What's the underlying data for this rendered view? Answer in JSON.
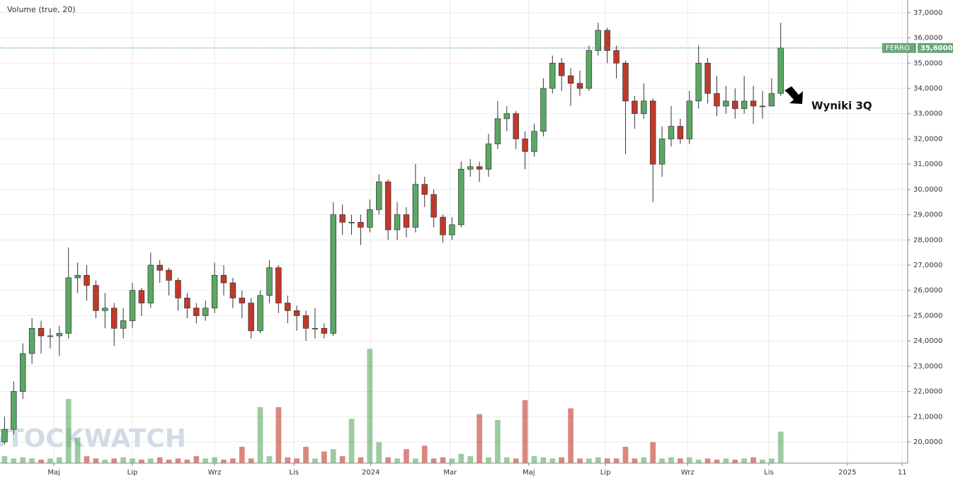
{
  "chart_data": {
    "type": "candlestick",
    "title": "Volume (true, 20)",
    "watermark": "STOCKWATCH",
    "symbol": "FERRO",
    "last_price": 35.6,
    "last_price_label": "35,6000",
    "annotation": "Wyniki 3Q",
    "up_color": "#5aa864",
    "down_color": "#c0392b",
    "xlim": [
      -0.5,
      98.9
    ],
    "xticks": [
      {
        "value": 5.4,
        "label": "Maj"
      },
      {
        "value": 14.0,
        "label": "Lip"
      },
      {
        "value": 23.0,
        "label": "Wrz"
      },
      {
        "value": 31.7,
        "label": "Lis"
      },
      {
        "value": 40.1,
        "label": "2024"
      },
      {
        "value": 48.8,
        "label": "Mar"
      },
      {
        "value": 57.4,
        "label": "Maj"
      },
      {
        "value": 65.8,
        "label": "Lip"
      },
      {
        "value": 74.8,
        "label": "Wrz"
      },
      {
        "value": 83.7,
        "label": "Lis"
      },
      {
        "value": 92.3,
        "label": "2025"
      },
      {
        "value": 98.3,
        "label": "11"
      }
    ],
    "ylim": [
      19.16,
      37.5
    ],
    "yticks": [
      {
        "value": 20,
        "label": "20,0000"
      },
      {
        "value": 21,
        "label": "21,0000"
      },
      {
        "value": 22,
        "label": "22,0000"
      },
      {
        "value": 23,
        "label": "23,0000"
      },
      {
        "value": 24,
        "label": "24,0000"
      },
      {
        "value": 25,
        "label": "25,0000"
      },
      {
        "value": 26,
        "label": "26,0000"
      },
      {
        "value": 27,
        "label": "27,0000"
      },
      {
        "value": 28,
        "label": "28,0000"
      },
      {
        "value": 29,
        "label": "29,0000"
      },
      {
        "value": 30,
        "label": "30,0000"
      },
      {
        "value": 31,
        "label": "31,0000"
      },
      {
        "value": 32,
        "label": "32,0000"
      },
      {
        "value": 33,
        "label": "33,0000"
      },
      {
        "value": 34,
        "label": "34,0000"
      },
      {
        "value": 35,
        "label": "35,0000"
      },
      {
        "value": 36,
        "label": "36,0000"
      },
      {
        "value": 37,
        "label": "37,0000"
      }
    ],
    "grid": true,
    "open": [
      20.0,
      20.5,
      22.0,
      23.5,
      24.5,
      24.2,
      24.2,
      24.3,
      26.5,
      26.6,
      26.2,
      25.2,
      25.3,
      24.5,
      24.8,
      26.0,
      25.5,
      27.0,
      26.8,
      26.4,
      25.7,
      25.3,
      25.0,
      25.3,
      26.6,
      26.3,
      25.7,
      25.5,
      24.4,
      25.8,
      26.9,
      25.5,
      25.2,
      25.0,
      24.5,
      24.5,
      24.3,
      29.0,
      28.7,
      28.7,
      28.5,
      29.2,
      30.3,
      28.4,
      29.0,
      28.5,
      30.2,
      29.8,
      28.9,
      28.2,
      28.6,
      30.8,
      30.9,
      30.8,
      31.8,
      32.8,
      33.0,
      32.0,
      31.5,
      32.3,
      34.0,
      35.0,
      34.5,
      34.2,
      34.0,
      35.5,
      36.3,
      35.5,
      35.0,
      33.5,
      33.0,
      33.5,
      31.0,
      32.0,
      32.5,
      32.0,
      33.5,
      35.0,
      33.8,
      33.3,
      33.5,
      33.2,
      33.5,
      33.3,
      33.3,
      33.8
    ],
    "high": [
      21.0,
      22.4,
      23.9,
      24.9,
      24.8,
      24.5,
      24.6,
      27.7,
      27.1,
      27.0,
      26.4,
      25.9,
      25.5,
      25.3,
      26.3,
      26.1,
      27.5,
      27.2,
      26.9,
      26.5,
      25.9,
      25.5,
      25.6,
      27.1,
      27.0,
      26.5,
      26.0,
      25.7,
      26.0,
      27.2,
      27.0,
      25.8,
      25.4,
      25.2,
      25.3,
      24.7,
      29.5,
      29.4,
      29.0,
      29.0,
      29.6,
      30.6,
      30.4,
      29.5,
      29.3,
      31.0,
      30.5,
      30.0,
      29.0,
      28.9,
      31.1,
      31.2,
      31.1,
      32.2,
      33.5,
      33.3,
      33.1,
      32.3,
      32.6,
      34.4,
      35.3,
      35.2,
      34.8,
      34.7,
      35.7,
      36.6,
      36.4,
      35.7,
      35.1,
      33.7,
      34.2,
      33.6,
      32.5,
      33.3,
      32.8,
      33.9,
      35.7,
      35.2,
      34.5,
      34.1,
      34.0,
      34.5,
      34.1,
      33.9,
      34.4,
      36.6
    ],
    "low": [
      19.9,
      20.3,
      21.7,
      23.1,
      23.5,
      23.7,
      23.4,
      24.1,
      25.9,
      25.6,
      24.9,
      24.5,
      23.8,
      24.1,
      24.5,
      25.0,
      25.3,
      26.3,
      25.8,
      25.2,
      24.9,
      24.7,
      24.8,
      25.1,
      25.8,
      25.3,
      24.9,
      24.1,
      24.3,
      25.5,
      25.1,
      24.7,
      24.4,
      24.0,
      24.1,
      24.1,
      24.2,
      28.2,
      28.2,
      27.8,
      28.3,
      29.0,
      28.0,
      28.0,
      28.1,
      28.3,
      29.3,
      28.5,
      27.9,
      28.0,
      28.5,
      30.5,
      30.3,
      30.5,
      31.6,
      32.3,
      31.6,
      30.8,
      31.3,
      32.1,
      33.8,
      33.9,
      33.3,
      33.7,
      33.9,
      35.3,
      35.0,
      34.4,
      31.4,
      32.4,
      32.8,
      29.5,
      30.5,
      31.7,
      31.8,
      31.8,
      33.2,
      33.4,
      32.9,
      33.0,
      32.8,
      33.0,
      32.6,
      32.8,
      33.3,
      33.7
    ],
    "close": [
      20.5,
      22.0,
      23.5,
      24.5,
      24.2,
      24.2,
      24.3,
      26.5,
      26.6,
      26.2,
      25.2,
      25.3,
      24.5,
      24.8,
      26.0,
      25.5,
      27.0,
      26.8,
      26.4,
      25.7,
      25.3,
      25.0,
      25.3,
      26.6,
      26.3,
      25.7,
      25.5,
      24.4,
      25.8,
      26.9,
      25.5,
      25.2,
      25.0,
      24.5,
      24.5,
      24.3,
      29.0,
      28.7,
      28.7,
      28.5,
      29.2,
      30.3,
      28.4,
      29.0,
      28.5,
      30.2,
      29.8,
      28.9,
      28.2,
      28.6,
      30.8,
      30.9,
      30.8,
      31.8,
      32.8,
      33.0,
      32.0,
      31.5,
      32.3,
      34.0,
      35.0,
      34.5,
      34.2,
      34.0,
      35.5,
      36.3,
      35.5,
      35.0,
      33.5,
      33.0,
      33.5,
      31.0,
      32.0,
      32.5,
      32.0,
      33.5,
      35.0,
      33.8,
      33.3,
      33.5,
      33.2,
      33.5,
      33.3,
      33.3,
      33.8,
      35.6
    ],
    "volume_lim": [
      0,
      100
    ],
    "volume": [
      6,
      4,
      5,
      4,
      3,
      4,
      5,
      55,
      22,
      6,
      4,
      3,
      4,
      5,
      4,
      3,
      4,
      5,
      3,
      4,
      3,
      6,
      4,
      5,
      3,
      4,
      14,
      4,
      48,
      6,
      48,
      5,
      4,
      14,
      4,
      10,
      12,
      6,
      38,
      5,
      98,
      18,
      5,
      4,
      12,
      4,
      15,
      4,
      5,
      4,
      8,
      6,
      42,
      5,
      37,
      5,
      4,
      54,
      6,
      5,
      4,
      5,
      47,
      4,
      4,
      5,
      4,
      4,
      14,
      4,
      5,
      18,
      4,
      5,
      4,
      5,
      3,
      4,
      3,
      4,
      3,
      4,
      5,
      3,
      4,
      27
    ]
  }
}
